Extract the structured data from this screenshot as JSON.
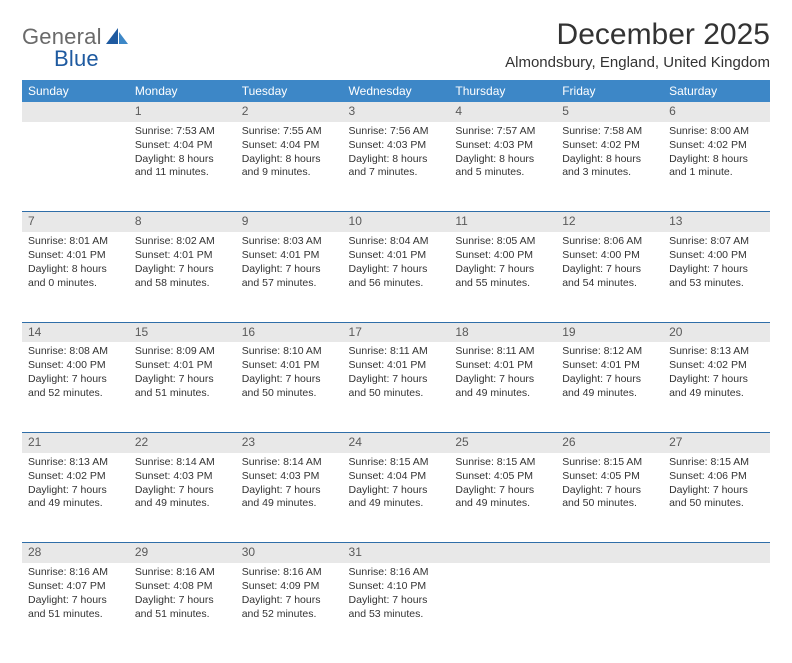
{
  "brand": {
    "word1": "General",
    "word2": "Blue"
  },
  "title": "December 2025",
  "location": "Almondsbury, England, United Kingdom",
  "colors": {
    "header_bg": "#3d87c7",
    "header_text": "#ffffff",
    "daynum_bg": "#e8e8e8",
    "daynum_text": "#5a5a5a",
    "row_divider": "#2f6ea8",
    "body_text": "#333333",
    "logo_gray": "#6a6a6a",
    "logo_blue_dark": "#1e5aa0",
    "logo_blue_light": "#3d87c7"
  },
  "weekdays": [
    "Sunday",
    "Monday",
    "Tuesday",
    "Wednesday",
    "Thursday",
    "Friday",
    "Saturday"
  ],
  "weeks": [
    {
      "nums": [
        "",
        "1",
        "2",
        "3",
        "4",
        "5",
        "6"
      ],
      "cells": [
        {
          "sunrise": "",
          "sunset": "",
          "daylight": ""
        },
        {
          "sunrise": "Sunrise: 7:53 AM",
          "sunset": "Sunset: 4:04 PM",
          "daylight": "Daylight: 8 hours and 11 minutes."
        },
        {
          "sunrise": "Sunrise: 7:55 AM",
          "sunset": "Sunset: 4:04 PM",
          "daylight": "Daylight: 8 hours and 9 minutes."
        },
        {
          "sunrise": "Sunrise: 7:56 AM",
          "sunset": "Sunset: 4:03 PM",
          "daylight": "Daylight: 8 hours and 7 minutes."
        },
        {
          "sunrise": "Sunrise: 7:57 AM",
          "sunset": "Sunset: 4:03 PM",
          "daylight": "Daylight: 8 hours and 5 minutes."
        },
        {
          "sunrise": "Sunrise: 7:58 AM",
          "sunset": "Sunset: 4:02 PM",
          "daylight": "Daylight: 8 hours and 3 minutes."
        },
        {
          "sunrise": "Sunrise: 8:00 AM",
          "sunset": "Sunset: 4:02 PM",
          "daylight": "Daylight: 8 hours and 1 minute."
        }
      ]
    },
    {
      "nums": [
        "7",
        "8",
        "9",
        "10",
        "11",
        "12",
        "13"
      ],
      "cells": [
        {
          "sunrise": "Sunrise: 8:01 AM",
          "sunset": "Sunset: 4:01 PM",
          "daylight": "Daylight: 8 hours and 0 minutes."
        },
        {
          "sunrise": "Sunrise: 8:02 AM",
          "sunset": "Sunset: 4:01 PM",
          "daylight": "Daylight: 7 hours and 58 minutes."
        },
        {
          "sunrise": "Sunrise: 8:03 AM",
          "sunset": "Sunset: 4:01 PM",
          "daylight": "Daylight: 7 hours and 57 minutes."
        },
        {
          "sunrise": "Sunrise: 8:04 AM",
          "sunset": "Sunset: 4:01 PM",
          "daylight": "Daylight: 7 hours and 56 minutes."
        },
        {
          "sunrise": "Sunrise: 8:05 AM",
          "sunset": "Sunset: 4:00 PM",
          "daylight": "Daylight: 7 hours and 55 minutes."
        },
        {
          "sunrise": "Sunrise: 8:06 AM",
          "sunset": "Sunset: 4:00 PM",
          "daylight": "Daylight: 7 hours and 54 minutes."
        },
        {
          "sunrise": "Sunrise: 8:07 AM",
          "sunset": "Sunset: 4:00 PM",
          "daylight": "Daylight: 7 hours and 53 minutes."
        }
      ]
    },
    {
      "nums": [
        "14",
        "15",
        "16",
        "17",
        "18",
        "19",
        "20"
      ],
      "cells": [
        {
          "sunrise": "Sunrise: 8:08 AM",
          "sunset": "Sunset: 4:00 PM",
          "daylight": "Daylight: 7 hours and 52 minutes."
        },
        {
          "sunrise": "Sunrise: 8:09 AM",
          "sunset": "Sunset: 4:01 PM",
          "daylight": "Daylight: 7 hours and 51 minutes."
        },
        {
          "sunrise": "Sunrise: 8:10 AM",
          "sunset": "Sunset: 4:01 PM",
          "daylight": "Daylight: 7 hours and 50 minutes."
        },
        {
          "sunrise": "Sunrise: 8:11 AM",
          "sunset": "Sunset: 4:01 PM",
          "daylight": "Daylight: 7 hours and 50 minutes."
        },
        {
          "sunrise": "Sunrise: 8:11 AM",
          "sunset": "Sunset: 4:01 PM",
          "daylight": "Daylight: 7 hours and 49 minutes."
        },
        {
          "sunrise": "Sunrise: 8:12 AM",
          "sunset": "Sunset: 4:01 PM",
          "daylight": "Daylight: 7 hours and 49 minutes."
        },
        {
          "sunrise": "Sunrise: 8:13 AM",
          "sunset": "Sunset: 4:02 PM",
          "daylight": "Daylight: 7 hours and 49 minutes."
        }
      ]
    },
    {
      "nums": [
        "21",
        "22",
        "23",
        "24",
        "25",
        "26",
        "27"
      ],
      "cells": [
        {
          "sunrise": "Sunrise: 8:13 AM",
          "sunset": "Sunset: 4:02 PM",
          "daylight": "Daylight: 7 hours and 49 minutes."
        },
        {
          "sunrise": "Sunrise: 8:14 AM",
          "sunset": "Sunset: 4:03 PM",
          "daylight": "Daylight: 7 hours and 49 minutes."
        },
        {
          "sunrise": "Sunrise: 8:14 AM",
          "sunset": "Sunset: 4:03 PM",
          "daylight": "Daylight: 7 hours and 49 minutes."
        },
        {
          "sunrise": "Sunrise: 8:15 AM",
          "sunset": "Sunset: 4:04 PM",
          "daylight": "Daylight: 7 hours and 49 minutes."
        },
        {
          "sunrise": "Sunrise: 8:15 AM",
          "sunset": "Sunset: 4:05 PM",
          "daylight": "Daylight: 7 hours and 49 minutes."
        },
        {
          "sunrise": "Sunrise: 8:15 AM",
          "sunset": "Sunset: 4:05 PM",
          "daylight": "Daylight: 7 hours and 50 minutes."
        },
        {
          "sunrise": "Sunrise: 8:15 AM",
          "sunset": "Sunset: 4:06 PM",
          "daylight": "Daylight: 7 hours and 50 minutes."
        }
      ]
    },
    {
      "nums": [
        "28",
        "29",
        "30",
        "31",
        "",
        "",
        ""
      ],
      "cells": [
        {
          "sunrise": "Sunrise: 8:16 AM",
          "sunset": "Sunset: 4:07 PM",
          "daylight": "Daylight: 7 hours and 51 minutes."
        },
        {
          "sunrise": "Sunrise: 8:16 AM",
          "sunset": "Sunset: 4:08 PM",
          "daylight": "Daylight: 7 hours and 51 minutes."
        },
        {
          "sunrise": "Sunrise: 8:16 AM",
          "sunset": "Sunset: 4:09 PM",
          "daylight": "Daylight: 7 hours and 52 minutes."
        },
        {
          "sunrise": "Sunrise: 8:16 AM",
          "sunset": "Sunset: 4:10 PM",
          "daylight": "Daylight: 7 hours and 53 minutes."
        },
        {
          "sunrise": "",
          "sunset": "",
          "daylight": ""
        },
        {
          "sunrise": "",
          "sunset": "",
          "daylight": ""
        },
        {
          "sunrise": "",
          "sunset": "",
          "daylight": ""
        }
      ]
    }
  ]
}
